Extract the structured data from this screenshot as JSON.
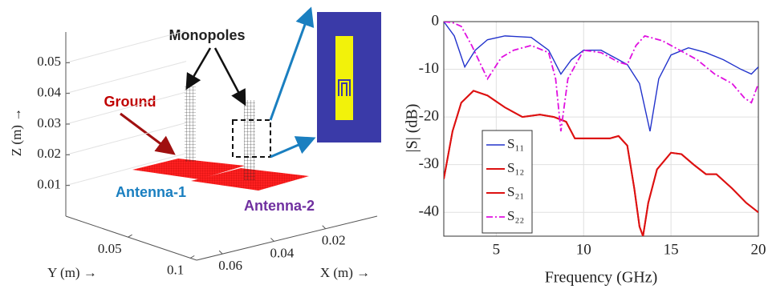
{
  "chart_data": [
    {
      "type": "3d",
      "annotations": [
        "Monopoles",
        "Ground",
        "Antenna-1",
        "Antenna-2"
      ],
      "xlabel": "X (m) →",
      "ylabel": "Y (m) →",
      "zlabel": "Z (m) →",
      "xlim": [
        0.07,
        0
      ],
      "xticks": [
        0.06,
        0.04,
        0.02
      ],
      "ylim": [
        0,
        0.105
      ],
      "yticks": [
        0.05,
        0.1
      ],
      "zlim": [
        0,
        0.06
      ],
      "zticks": [
        0.01,
        0.02,
        0.03,
        0.04,
        0.05
      ],
      "grid": true
    },
    {
      "type": "line",
      "xlabel": "Frequency (GHz)",
      "ylabel": "|S| (dB)",
      "xlim": [
        2,
        20
      ],
      "xticks": [
        5,
        10,
        15,
        20
      ],
      "ylim": [
        -45,
        0
      ],
      "yticks": [
        0,
        -10,
        -20,
        -30,
        -40
      ],
      "grid": true,
      "legend": "lower left",
      "series": [
        {
          "name": "S₁₁",
          "color": "#2233cc",
          "linestyle": "solid",
          "linewidth": 1.4,
          "x": [
            2,
            2.6,
            3.2,
            3.8,
            4.5,
            5.5,
            7,
            8,
            8.7,
            9.3,
            10,
            11,
            12,
            12.5,
            13.2,
            13.8,
            14.3,
            15,
            16,
            17,
            18,
            19,
            19.6,
            20
          ],
          "values": [
            0,
            -3,
            -9.5,
            -6,
            -3.8,
            -3,
            -3.3,
            -6,
            -11,
            -8,
            -6,
            -6,
            -8,
            -9,
            -13,
            -23,
            -12,
            -7,
            -5.5,
            -6.5,
            -8,
            -10,
            -11,
            -9.5
          ]
        },
        {
          "name": "S₁₂",
          "color": "#dd1111",
          "linestyle": "solid",
          "linewidth": 2,
          "x": [
            2,
            2.5,
            3,
            3.7,
            4.5,
            5.5,
            6.5,
            7.5,
            8.3,
            9,
            9.5,
            10.5,
            11.5,
            12,
            12.5,
            12.9,
            13.2,
            13.4,
            13.7,
            14.2,
            15,
            15.6,
            16.3,
            17,
            17.6,
            18.5,
            19.3,
            20
          ],
          "values": [
            -33,
            -23,
            -17,
            -14.5,
            -15.5,
            -18,
            -20,
            -19.5,
            -20,
            -21,
            -24.5,
            -24.5,
            -24.5,
            -24,
            -26,
            -35,
            -43,
            -45,
            -38,
            -31,
            -27.5,
            -27.8,
            -30,
            -32,
            -32,
            -35,
            -38,
            -40
          ]
        },
        {
          "name": "S₂₁",
          "color": "#dd1111",
          "linestyle": "solid",
          "linewidth": 2,
          "x": [
            2,
            2.5,
            3,
            3.7,
            4.5,
            5.5,
            6.5,
            7.5,
            8.3,
            9,
            9.5,
            10.5,
            11.5,
            12,
            12.5,
            12.9,
            13.2,
            13.4,
            13.7,
            14.2,
            15,
            15.6,
            16.3,
            17,
            17.6,
            18.5,
            19.3,
            20
          ],
          "values": [
            -33,
            -23,
            -17,
            -14.5,
            -15.5,
            -18,
            -20,
            -19.5,
            -20,
            -21,
            -24.5,
            -24.5,
            -24.5,
            -24,
            -26,
            -35,
            -43,
            -45,
            -38,
            -31,
            -27.5,
            -27.8,
            -30,
            -32,
            -32,
            -35,
            -38,
            -40
          ]
        },
        {
          "name": "S₂₂",
          "color": "#e010e0",
          "linestyle": "dashed",
          "linewidth": 1.8,
          "x": [
            2,
            2.5,
            3,
            3.6,
            4.5,
            5.3,
            6,
            7,
            8,
            8.4,
            8.7,
            9.1,
            10,
            11,
            12,
            12.5,
            13,
            13.5,
            14.5,
            15.5,
            16.5,
            17.5,
            18.5,
            19.2,
            19.6,
            20
          ],
          "values": [
            0,
            -0.2,
            -1,
            -5,
            -12,
            -7.5,
            -6,
            -5,
            -6.5,
            -12,
            -23,
            -12,
            -6,
            -6.5,
            -8.5,
            -9,
            -5,
            -3,
            -4,
            -6,
            -8,
            -11,
            -13,
            -16,
            -17,
            -13
          ]
        }
      ]
    }
  ]
}
